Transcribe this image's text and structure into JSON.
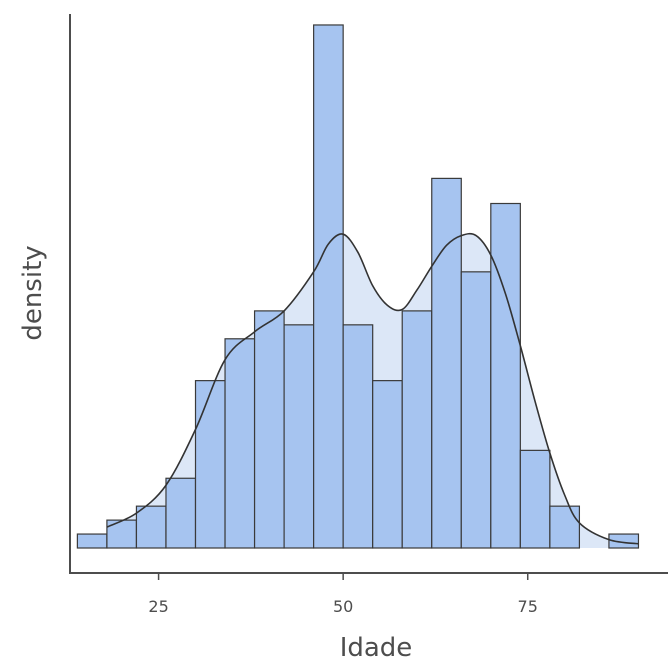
{
  "chart_data": {
    "type": "bar",
    "subtype": "histogram-with-density",
    "title": "",
    "xlabel": "Idade",
    "ylabel": "density",
    "xlim": [
      13,
      94
    ],
    "ylim": [
      0,
      0.038
    ],
    "x_ticks": [
      25,
      50,
      75
    ],
    "x_tick_labels": [
      "25",
      "50",
      "75"
    ],
    "y_ticks_shown": false,
    "grid": false,
    "legend": "none",
    "bin_width": 4,
    "bins": [
      {
        "x0": 14,
        "x1": 18,
        "density": 0.001
      },
      {
        "x0": 18,
        "x1": 22,
        "density": 0.002
      },
      {
        "x0": 22,
        "x1": 26,
        "density": 0.003
      },
      {
        "x0": 26,
        "x1": 30,
        "density": 0.005
      },
      {
        "x0": 30,
        "x1": 34,
        "density": 0.012
      },
      {
        "x0": 34,
        "x1": 38,
        "density": 0.015
      },
      {
        "x0": 38,
        "x1": 42,
        "density": 0.017
      },
      {
        "x0": 42,
        "x1": 46,
        "density": 0.016
      },
      {
        "x0": 46,
        "x1": 50,
        "density": 0.0375
      },
      {
        "x0": 50,
        "x1": 54,
        "density": 0.016
      },
      {
        "x0": 54,
        "x1": 58,
        "density": 0.012
      },
      {
        "x0": 58,
        "x1": 62,
        "density": 0.017
      },
      {
        "x0": 62,
        "x1": 66,
        "density": 0.0265
      },
      {
        "x0": 66,
        "x1": 70,
        "density": 0.0198
      },
      {
        "x0": 70,
        "x1": 74,
        "density": 0.0247
      },
      {
        "x0": 74,
        "x1": 78,
        "density": 0.007
      },
      {
        "x0": 78,
        "x1": 82,
        "density": 0.003
      },
      {
        "x0": 82,
        "x1": 86,
        "density": 0.0
      },
      {
        "x0": 86,
        "x1": 90,
        "density": 0.001
      }
    ],
    "density_curve": {
      "x": [
        18,
        22,
        26,
        30,
        34,
        38,
        42,
        46,
        48,
        50,
        52,
        54,
        56,
        58,
        60,
        62,
        64,
        66,
        68,
        70,
        72,
        74,
        76,
        78,
        80,
        82,
        86,
        90
      ],
      "y": [
        0.0015,
        0.0025,
        0.0045,
        0.0085,
        0.0135,
        0.0155,
        0.017,
        0.0198,
        0.0218,
        0.0225,
        0.0212,
        0.0188,
        0.0174,
        0.0171,
        0.0185,
        0.0202,
        0.0217,
        0.0224,
        0.0224,
        0.021,
        0.0182,
        0.0145,
        0.0105,
        0.0068,
        0.0038,
        0.0018,
        0.0006,
        0.0003
      ]
    },
    "colors": {
      "bar_fill": "#a6c4f0",
      "bar_stroke": "#3a3a3a",
      "density_fill": "#c5d7f2",
      "density_line": "#333333",
      "axis": "#4d4d4d"
    }
  }
}
